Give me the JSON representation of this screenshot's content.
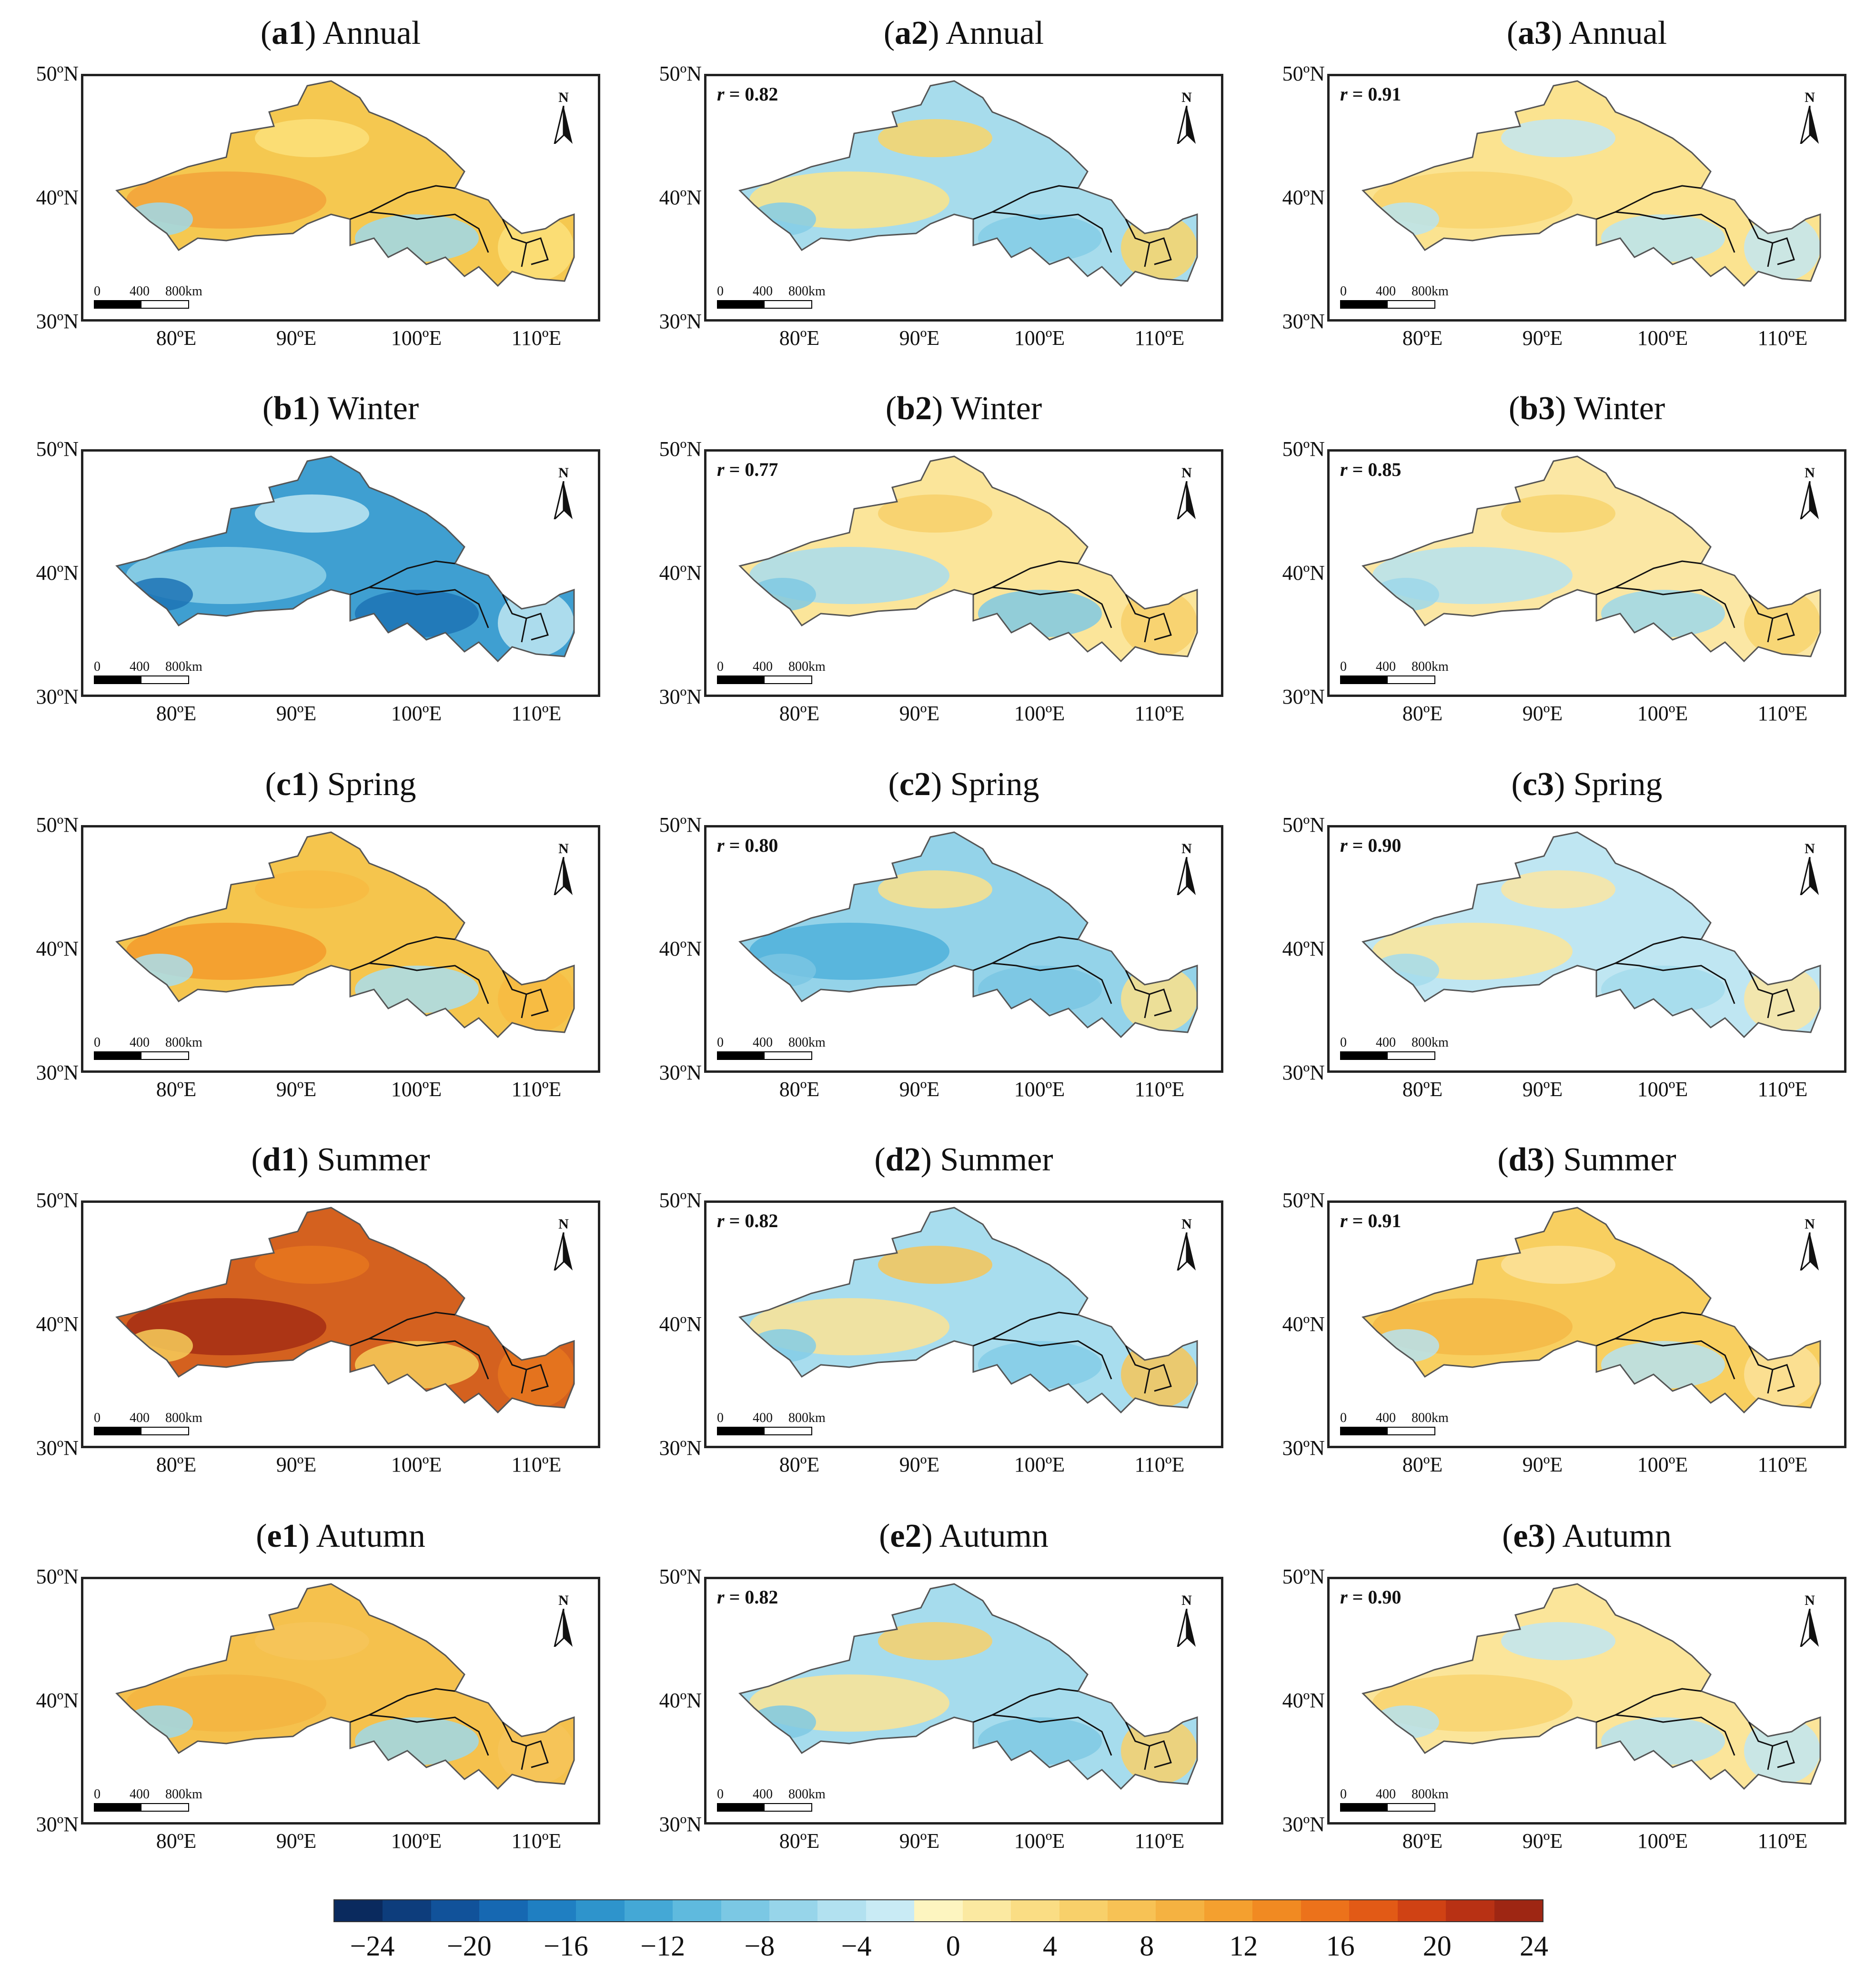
{
  "rows": [
    {
      "letter": "a",
      "season": "Annual",
      "r": [
        "",
        "0.82",
        "0.91"
      ]
    },
    {
      "letter": "b",
      "season": "Winter",
      "r": [
        "",
        "0.77",
        "0.85"
      ]
    },
    {
      "letter": "c",
      "season": "Spring",
      "r": [
        "",
        "0.80",
        "0.90"
      ]
    },
    {
      "letter": "d",
      "season": "Summer",
      "r": [
        "",
        "0.82",
        "0.91"
      ]
    },
    {
      "letter": "e",
      "season": "Autumn",
      "r": [
        "",
        "0.82",
        "0.90"
      ]
    }
  ],
  "panels": [
    {
      "id": "a1",
      "row": 0,
      "col": 0,
      "fill": "#f5c850",
      "sub": "#f2a23a",
      "sub2": "#9dd8ea",
      "sub3": "#fbe07a"
    },
    {
      "id": "a2",
      "row": 0,
      "col": 1,
      "fill": "#a7dcec",
      "sub": "#fbe48a",
      "sub2": "#84cde6",
      "sub3": "#f8d56a"
    },
    {
      "id": "a3",
      "row": 0,
      "col": 2,
      "fill": "#fbe390",
      "sub": "#f8d36e",
      "sub2": "#b9e4f0",
      "sub3": "#c2e6f2"
    },
    {
      "id": "b1",
      "row": 1,
      "col": 0,
      "fill": "#3f9fd1",
      "sub": "#8fd1e8",
      "sub2": "#1d73b5",
      "sub3": "#bfe6f2"
    },
    {
      "id": "b2",
      "row": 1,
      "col": 1,
      "fill": "#fbe59a",
      "sub": "#a8ddee",
      "sub2": "#7fc9e3",
      "sub3": "#f7d06a"
    },
    {
      "id": "b3",
      "row": 1,
      "col": 2,
      "fill": "#fbe7a4",
      "sub": "#b5e2f0",
      "sub2": "#9cd7ea",
      "sub3": "#f7d36e"
    },
    {
      "id": "c1",
      "row": 2,
      "col": 0,
      "fill": "#f5c54d",
      "sub": "#f39a2c",
      "sub2": "#a8ddee",
      "sub3": "#f7ba42"
    },
    {
      "id": "c2",
      "row": 2,
      "col": 1,
      "fill": "#94d3e9",
      "sub": "#4fb0db",
      "sub2": "#7ac6e3",
      "sub3": "#fbe08a"
    },
    {
      "id": "c3",
      "row": 2,
      "col": 2,
      "fill": "#bfe6f2",
      "sub": "#fbe599",
      "sub2": "#a3daec",
      "sub3": "#fae5a2"
    },
    {
      "id": "d1",
      "row": 3,
      "col": 0,
      "fill": "#d4611f",
      "sub": "#a42e14",
      "sub2": "#f6cd5a",
      "sub3": "#e6771f"
    },
    {
      "id": "d2",
      "row": 3,
      "col": 1,
      "fill": "#a8ddee",
      "sub": "#fbe394",
      "sub2": "#84cde6",
      "sub3": "#f6c558"
    },
    {
      "id": "d3",
      "row": 3,
      "col": 2,
      "fill": "#f8cf60",
      "sub": "#f5b847",
      "sub2": "#b6e2f0",
      "sub3": "#fbe29a"
    },
    {
      "id": "e1",
      "row": 4,
      "col": 0,
      "fill": "#f5c14d",
      "sub": "#f3b441",
      "sub2": "#9dd8ea",
      "sub3": "#f6c45a"
    },
    {
      "id": "e2",
      "row": 4,
      "col": 1,
      "fill": "#a6dced",
      "sub": "#fbe494",
      "sub2": "#7fc9e3",
      "sub3": "#f7d06a"
    },
    {
      "id": "e3",
      "row": 4,
      "col": 2,
      "fill": "#fbe59a",
      "sub": "#f8d36e",
      "sub2": "#b5e2f0",
      "sub3": "#bfe6f2"
    }
  ],
  "y_axis_labels": [
    "50ºN",
    "40ºN",
    "30ºN"
  ],
  "x_axis_labels": [
    "80ºE",
    "90ºE",
    "100ºE",
    "110ºE"
  ],
  "north_label": "N",
  "scale_labels": [
    "0",
    "400",
    "800km"
  ],
  "colorbar": {
    "colors": [
      "#0a2a5e",
      "#0d3d7c",
      "#11529a",
      "#1668b2",
      "#1f7fc2",
      "#2e94cc",
      "#44a8d6",
      "#5fbade",
      "#7bc8e4",
      "#97d5ea",
      "#b2e1f0",
      "#c9ebf5",
      "#fdf5c0",
      "#fbe9a1",
      "#fadd84",
      "#f8d06a",
      "#f7c255",
      "#f5b241",
      "#f4a02f",
      "#f18a22",
      "#ec721b",
      "#e25a16",
      "#d04214",
      "#b83114",
      "#9e2613"
    ],
    "ticks": [
      "−24",
      "−20",
      "−16",
      "−12",
      "−8",
      "−4",
      "0",
      "4",
      "8",
      "12",
      "16",
      "20",
      "24"
    ]
  }
}
